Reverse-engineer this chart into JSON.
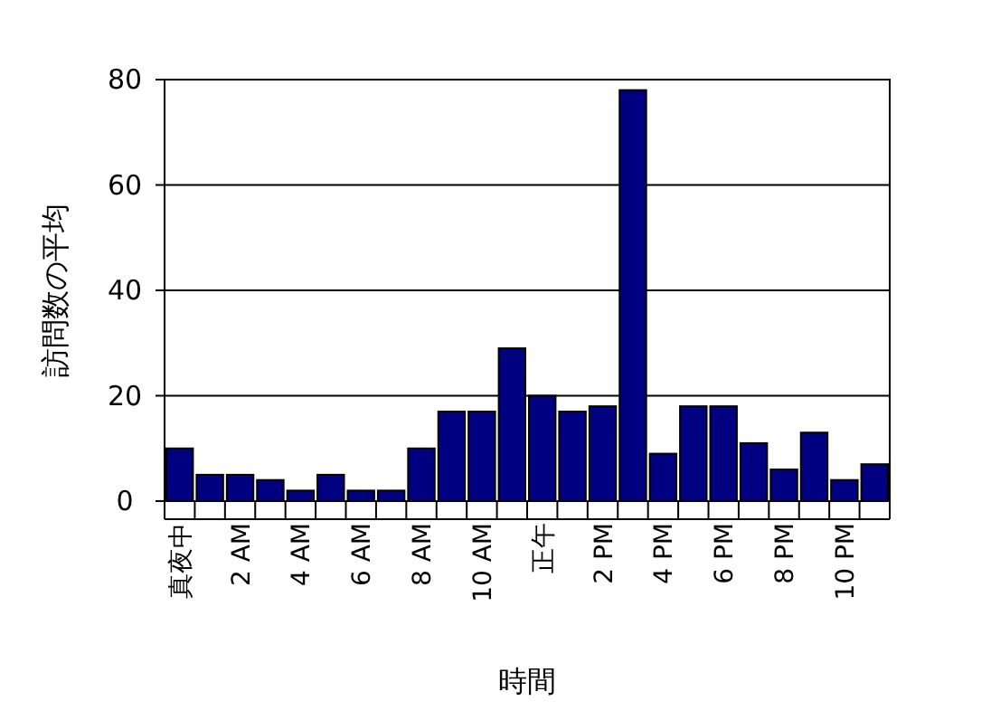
{
  "chart_data": {
    "type": "bar",
    "xlabel": "時間",
    "ylabel": "訪問数の平均",
    "categories": [
      "真夜中",
      null,
      "2 AM",
      null,
      "4 AM",
      null,
      "6 AM",
      null,
      "8 AM",
      null,
      "10 AM",
      null,
      "正午",
      null,
      "2 PM",
      null,
      "4 PM",
      null,
      "6 PM",
      null,
      "8 PM",
      null,
      "10 PM",
      null
    ],
    "values": [
      10,
      5,
      5,
      4,
      2,
      5,
      2,
      2,
      10,
      17,
      17,
      29,
      20,
      17,
      18,
      78,
      9,
      18,
      18,
      11,
      6,
      13,
      4,
      7
    ],
    "color": "#000080",
    "ylim": [
      0,
      80
    ],
    "yticks": [
      0,
      20,
      40,
      60,
      80
    ],
    "grid": "y"
  }
}
